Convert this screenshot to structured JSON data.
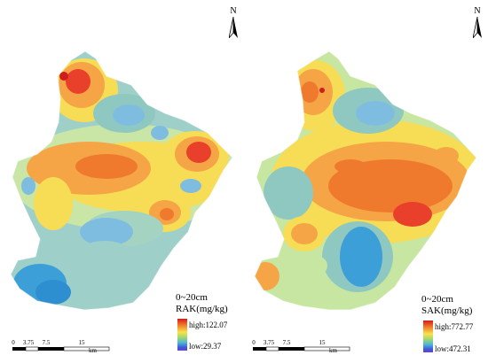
{
  "north_label": "N",
  "scale": {
    "ticks": [
      "0",
      "3.75",
      "7.5",
      "15"
    ],
    "unit": "km"
  },
  "palette": {
    "red": "#e8402a",
    "orange": "#f38b3a",
    "yellow": "#f7d94c",
    "lightgreen": "#c6e6a2",
    "teal": "#8fc8c0",
    "lightblue": "#7fbde0",
    "blue": "#3d9fd8"
  },
  "panels": [
    {
      "depth": "0~20cm",
      "variable": "RAK(mg/kg)",
      "legend": {
        "high": "high:122.07",
        "low": "low:29.37"
      }
    },
    {
      "depth": "0~20cm",
      "variable": "SAK(mg/kg)",
      "legend": {
        "high": "high:772.77",
        "low": "low:472.31"
      }
    }
  ]
}
